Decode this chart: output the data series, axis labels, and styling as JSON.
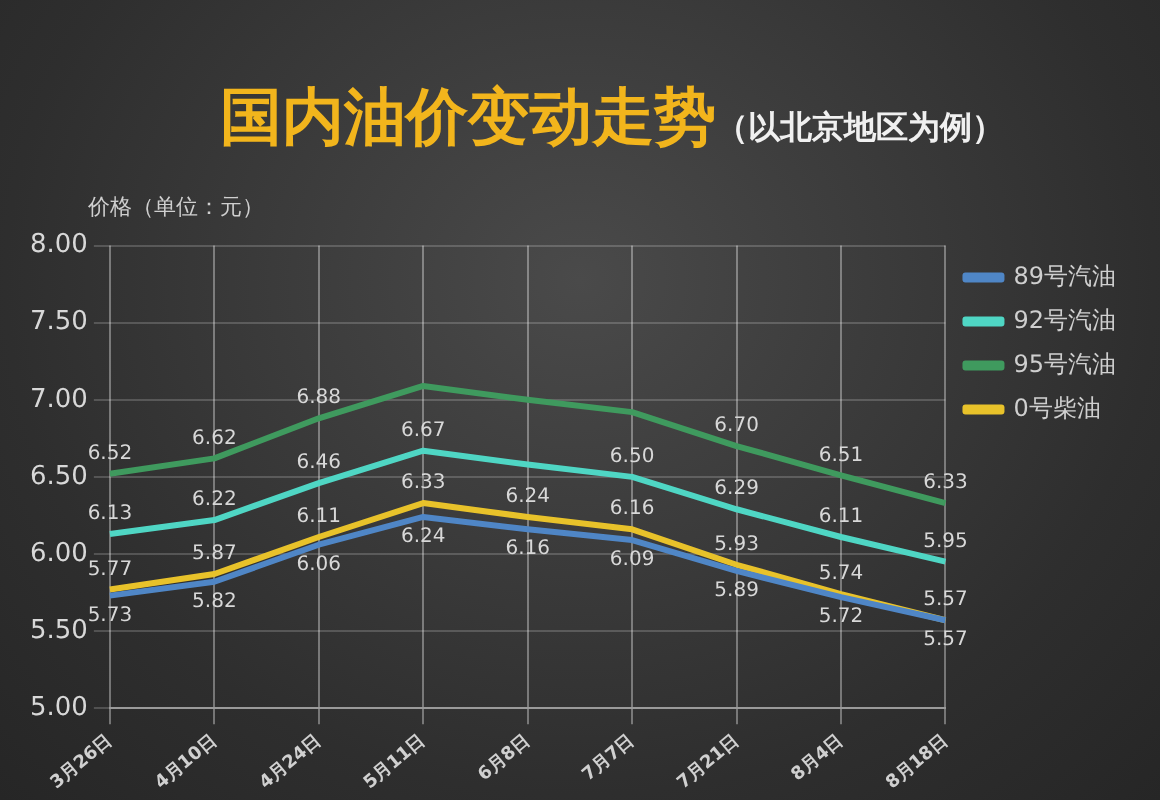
{
  "chart_data": {
    "type": "line",
    "title": "国内油价变动走势",
    "subtitle": "（以北京地区为例）",
    "ylabel": "价格（单位：元）",
    "categories": [
      "3月26日",
      "4月10日",
      "4月24日",
      "5月11日",
      "6月8日",
      "7月7日",
      "7月21日",
      "8月4日",
      "8月18日"
    ],
    "series": [
      {
        "name": "89号汽油",
        "color": "#4f86c6",
        "values": [
          5.73,
          5.82,
          6.06,
          6.24,
          6.16,
          6.09,
          5.89,
          5.72,
          5.57
        ],
        "value_labels": [
          "5.73",
          "5.82",
          "6.06",
          "6.24",
          "6.16",
          "6.09",
          "5.89",
          "5.72",
          "5.57"
        ]
      },
      {
        "name": "92号汽油",
        "color": "#4fd6c4",
        "values": [
          6.13,
          6.22,
          6.46,
          6.67,
          6.58,
          6.5,
          6.29,
          6.11,
          5.95
        ],
        "value_labels": [
          "6.13",
          "6.22",
          "6.46",
          "6.67",
          null,
          "6.50",
          "6.29",
          "6.11",
          "5.95"
        ]
      },
      {
        "name": "95号汽油",
        "color": "#3f9a5e",
        "values": [
          6.52,
          6.62,
          6.88,
          7.09,
          7.0,
          6.92,
          6.7,
          6.51,
          6.33
        ],
        "value_labels": [
          "6.52",
          "6.62",
          "6.88",
          null,
          null,
          null,
          "6.70",
          "6.51",
          "6.33"
        ]
      },
      {
        "name": "0号柴油",
        "color": "#e8c22a",
        "values": [
          5.77,
          5.87,
          6.11,
          6.33,
          6.24,
          6.16,
          5.93,
          5.74,
          5.57
        ],
        "value_labels": [
          "5.77",
          "5.87",
          "6.11",
          "6.33",
          "6.24",
          "6.16",
          "5.93",
          "5.74",
          "5.57"
        ]
      }
    ],
    "ylim": [
      5,
      8
    ],
    "yticks": [
      {
        "value": 5,
        "label": "5.00"
      },
      {
        "value": 5.5,
        "label": "5.50"
      },
      {
        "value": 6,
        "label": "6.00"
      },
      {
        "value": 6.5,
        "label": "6.50"
      },
      {
        "value": 7,
        "label": "7.00"
      },
      {
        "value": 7.5,
        "label": "7.50"
      },
      {
        "value": 8,
        "label": "8.00"
      }
    ],
    "grid": true,
    "legend": "top right",
    "marker": "none",
    "line_style": "solid"
  }
}
